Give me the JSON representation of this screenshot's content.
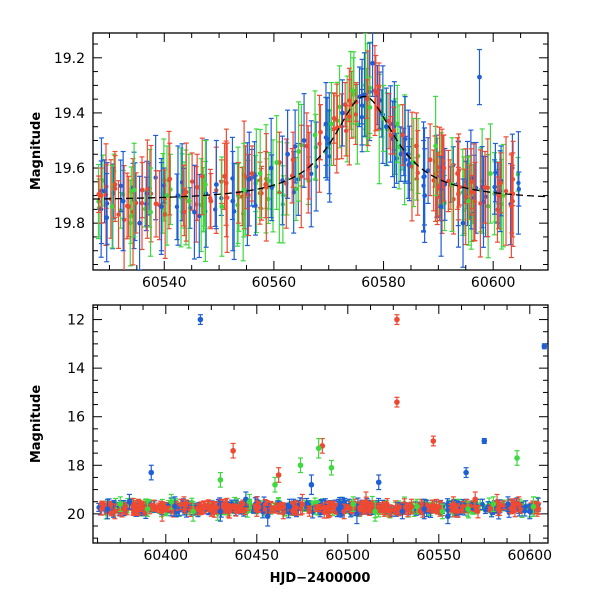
{
  "colors": {
    "blue": "#1f5fd6",
    "red": "#ee4a33",
    "green": "#3ed93e",
    "model": "#000000"
  },
  "chart_data": [
    {
      "type": "scatter",
      "panel": "top",
      "xlabel": "",
      "ylabel": "Magnitude",
      "xlim": [
        60527,
        60610
      ],
      "ylim": [
        19.97,
        19.11
      ],
      "y_inverted": true,
      "xticks": [
        60540,
        60560,
        60580,
        60600
      ],
      "xtick_labels": [
        "60540",
        "60560",
        "60580",
        "60600"
      ],
      "yticks": [
        19.2,
        19.4,
        19.6,
        19.8
      ],
      "ytick_labels": [
        "19.2",
        "19.4",
        "19.6",
        "19.8"
      ],
      "model_curve": {
        "style": "dashed",
        "baseline": 19.72,
        "peak_mag": 19.34,
        "peak_x": 60576.5,
        "width": 7.0
      },
      "series": [
        {
          "color": "red",
          "points": [
            [
              60528.5,
              19.7,
              0.1
            ],
            [
              60531,
              19.66,
              0.12
            ],
            [
              60533.5,
              19.74,
              0.11
            ],
            [
              60536,
              19.68,
              0.1
            ],
            [
              60538.5,
              19.73,
              0.12
            ],
            [
              60541,
              19.64,
              0.13
            ],
            [
              60543.5,
              19.7,
              0.11
            ],
            [
              60546,
              19.67,
              0.12
            ],
            [
              60548.5,
              19.72,
              0.1
            ],
            [
              60551,
              19.63,
              0.12
            ],
            [
              60553.5,
              19.69,
              0.11
            ],
            [
              60556,
              19.62,
              0.1
            ],
            [
              60558.5,
              19.66,
              0.12
            ],
            [
              60561,
              19.58,
              0.11
            ],
            [
              60563.5,
              19.57,
              0.1
            ],
            [
              60566,
              19.52,
              0.12
            ],
            [
              60568.5,
              19.47,
              0.1
            ],
            [
              60571,
              19.42,
              0.09
            ],
            [
              60573,
              19.37,
              0.08
            ],
            [
              60575,
              19.36,
              0.07
            ],
            [
              60577,
              19.35,
              0.07
            ],
            [
              60579,
              19.38,
              0.08
            ],
            [
              60581,
              19.43,
              0.1
            ],
            [
              60583.5,
              19.48,
              0.11
            ],
            [
              60586,
              19.52,
              0.12
            ],
            [
              60588.5,
              19.57,
              0.13
            ],
            [
              60591,
              19.6,
              0.12
            ],
            [
              60593.5,
              19.62,
              0.13
            ],
            [
              60596,
              19.65,
              0.12
            ],
            [
              60598.5,
              19.67,
              0.13
            ],
            [
              60601,
              19.7,
              0.12
            ],
            [
              60603.5,
              19.72,
              0.13
            ]
          ]
        },
        {
          "color": "blue",
          "points": [
            [
              60529.5,
              19.78,
              0.16
            ],
            [
              60532.5,
              19.72,
              0.18
            ],
            [
              60535.5,
              19.8,
              0.17
            ],
            [
              60539.5,
              19.74,
              0.16
            ],
            [
              60542.5,
              19.7,
              0.18
            ],
            [
              60545.5,
              19.76,
              0.17
            ],
            [
              60549.5,
              19.66,
              0.16
            ],
            [
              60552.5,
              19.72,
              0.18
            ],
            [
              60555.5,
              19.64,
              0.17
            ],
            [
              60559.5,
              19.6,
              0.18
            ],
            [
              60562.5,
              19.55,
              0.16
            ],
            [
              60565.5,
              19.5,
              0.17
            ],
            [
              60569.5,
              19.44,
              0.15
            ],
            [
              60572.5,
              19.4,
              0.12
            ],
            [
              60576,
              19.34,
              0.1
            ],
            [
              60578,
              19.22,
              0.12
            ],
            [
              60580.5,
              19.45,
              0.14
            ],
            [
              60584.5,
              19.55,
              0.16
            ],
            [
              60587.5,
              19.7,
              0.17
            ],
            [
              60590.5,
              19.74,
              0.18
            ],
            [
              60594.5,
              19.8,
              0.16
            ],
            [
              60597.5,
              19.27,
              0.1
            ]
          ]
        },
        {
          "color": "green",
          "points": [
            [
              60530.5,
              19.74,
              0.15
            ],
            [
              60534.5,
              19.68,
              0.17
            ],
            [
              60537.5,
              19.76,
              0.16
            ],
            [
              60540.5,
              19.7,
              0.18
            ],
            [
              60544.5,
              19.72,
              0.17
            ],
            [
              60547.5,
              19.66,
              0.16
            ],
            [
              60550.5,
              19.74,
              0.18
            ],
            [
              60554.5,
              19.68,
              0.17
            ],
            [
              60557.5,
              19.62,
              0.16
            ],
            [
              60560.5,
              19.58,
              0.17
            ],
            [
              60564.5,
              19.54,
              0.18
            ],
            [
              60567.5,
              19.48,
              0.16
            ],
            [
              60570.5,
              19.44,
              0.15
            ],
            [
              60574.5,
              19.32,
              0.12
            ],
            [
              60577.5,
              19.38,
              0.11
            ],
            [
              60580,
              19.42,
              0.12
            ],
            [
              60582.5,
              19.44,
              0.14
            ],
            [
              60585.5,
              19.58,
              0.16
            ],
            [
              60589.5,
              19.52,
              0.18
            ],
            [
              60592.5,
              19.66,
              0.17
            ],
            [
              60595.5,
              19.72,
              0.16
            ],
            [
              60599.5,
              19.62,
              0.18
            ]
          ]
        }
      ]
    },
    {
      "type": "scatter",
      "panel": "bottom",
      "xlabel": "HJD−2400000",
      "ylabel": "Magnitude",
      "xlim": [
        60360,
        60610
      ],
      "ylim": [
        21.2,
        11.4
      ],
      "y_inverted": true,
      "xticks": [
        60400,
        60450,
        60500,
        60550,
        60600
      ],
      "xtick_labels": [
        "60400",
        "60450",
        "60500",
        "60550",
        "60600"
      ],
      "yticks": [
        12,
        14,
        16,
        18,
        20
      ],
      "ytick_labels": [
        "12",
        "14",
        "16",
        "18",
        "20"
      ],
      "series": [
        {
          "color": "red",
          "points": [
            [
              60372,
              19.9,
              0.3
            ],
            [
              60385,
              19.7,
              0.3
            ],
            [
              60398,
              19.9,
              0.4
            ],
            [
              60410,
              19.6,
              0.3
            ],
            [
              60425,
              19.8,
              0.3
            ],
            [
              60437,
              17.4,
              0.3
            ],
            [
              60450,
              19.7,
              0.4
            ],
            [
              60462,
              18.4,
              0.3
            ],
            [
              60475,
              19.6,
              0.4
            ],
            [
              60486,
              17.2,
              0.3
            ],
            [
              60498,
              19.9,
              0.3
            ],
            [
              60510,
              19.5,
              0.4
            ],
            [
              60520,
              19.8,
              0.3
            ],
            [
              60527,
              12.0,
              0.2
            ],
            [
              60527,
              15.4,
              0.2
            ],
            [
              60535,
              19.7,
              0.3
            ],
            [
              60547,
              17.0,
              0.2
            ],
            [
              60558,
              19.6,
              0.3
            ],
            [
              60570,
              19.4,
              0.3
            ],
            [
              60582,
              19.5,
              0.3
            ],
            [
              60594,
              19.6,
              0.3
            ],
            [
              60604,
              19.8,
              0.3
            ]
          ]
        },
        {
          "color": "blue",
          "points": [
            [
              60368,
              19.8,
              0.4
            ],
            [
              60380,
              19.5,
              0.3
            ],
            [
              60392,
              18.3,
              0.3
            ],
            [
              60405,
              19.7,
              0.4
            ],
            [
              60419,
              12.0,
              0.2
            ],
            [
              60430,
              19.9,
              0.4
            ],
            [
              60444,
              19.4,
              0.3
            ],
            [
              60456,
              20.1,
              0.4
            ],
            [
              60468,
              19.7,
              0.3
            ],
            [
              60480,
              18.8,
              0.4
            ],
            [
              60495,
              19.8,
              0.3
            ],
            [
              60505,
              20.0,
              0.4
            ],
            [
              60517,
              18.7,
              0.3
            ],
            [
              60530,
              19.9,
              0.3
            ],
            [
              60542,
              19.8,
              0.4
            ],
            [
              60555,
              20.1,
              0.3
            ],
            [
              60565,
              18.3,
              0.2
            ],
            [
              60575,
              17.0,
              0.1
            ],
            [
              60588,
              19.6,
              0.3
            ],
            [
              60600,
              19.9,
              0.3
            ],
            [
              60608,
              13.1,
              0.1
            ]
          ]
        },
        {
          "color": "green",
          "points": [
            [
              60375,
              19.6,
              0.3
            ],
            [
              60390,
              19.8,
              0.3
            ],
            [
              60403,
              19.5,
              0.3
            ],
            [
              60415,
              19.9,
              0.4
            ],
            [
              60430,
              18.6,
              0.3
            ],
            [
              60446,
              19.5,
              0.3
            ],
            [
              60460,
              18.8,
              0.3
            ],
            [
              60474,
              18.0,
              0.3
            ],
            [
              60484,
              17.3,
              0.4
            ],
            [
              60491,
              18.1,
              0.3
            ],
            [
              60503,
              19.6,
              0.3
            ],
            [
              60515,
              19.9,
              0.4
            ],
            [
              60538,
              19.7,
              0.3
            ],
            [
              60552,
              19.9,
              0.3
            ],
            [
              60566,
              19.8,
              0.3
            ],
            [
              60580,
              19.6,
              0.3
            ],
            [
              60593,
              17.7,
              0.3
            ],
            [
              60602,
              19.7,
              0.4
            ]
          ]
        }
      ]
    }
  ]
}
